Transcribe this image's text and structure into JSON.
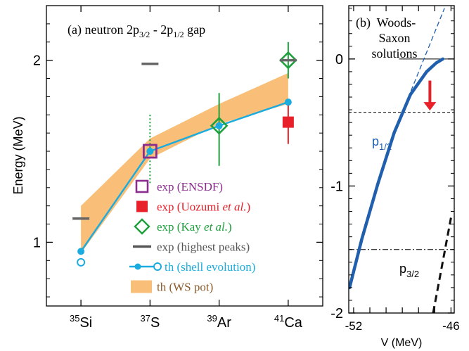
{
  "chart_data": [
    {
      "type": "scatter",
      "panel_label": "(a)",
      "title": "neutron 2p3/2 - 2p1/2 gap",
      "title_parts": {
        "prefix": "(a) neutron 2p",
        "sub1": "3/2",
        "mid": " - 2p",
        "sub2": "1/2",
        "suffix": " gap"
      },
      "ylabel": "Energy (MeV)",
      "xlabel": "",
      "ylim": [
        0.65,
        2.3
      ],
      "yticks": [
        1,
        2
      ],
      "categories": [
        "35Si",
        "37S",
        "39Ar",
        "41Ca"
      ],
      "category_labels": [
        {
          "mass": "35",
          "sym": "Si"
        },
        {
          "mass": "37",
          "sym": "S"
        },
        {
          "mass": "39",
          "sym": "Ar"
        },
        {
          "mass": "41",
          "sym": "Ca"
        }
      ],
      "series": [
        {
          "name": "exp (ENSDF)",
          "color": "#8b2c8f",
          "marker": "open-square",
          "points": [
            {
              "x": "37S",
              "y": 1.5
            }
          ]
        },
        {
          "name": "exp (Uozumi et al.)",
          "color": "#e8202a",
          "marker": "filled-square",
          "points": [
            {
              "x": "41Ca",
              "y": 1.66,
              "err": [
                0.12,
                0.12
              ]
            }
          ]
        },
        {
          "name": "exp (Kay et al.)",
          "color": "#1ea03c",
          "marker": "open-diamond",
          "points": [
            {
              "x": "39Ar",
              "y": 1.64,
              "err": [
                0.22,
                0.18
              ]
            },
            {
              "x": "41Ca",
              "y": 2.0,
              "err": [
                0.1,
                0.1
              ]
            }
          ]
        },
        {
          "name": "exp (highest peaks)",
          "color": "#666666",
          "marker": "dash",
          "points": [
            {
              "x": "35Si",
              "y": 1.13
            },
            {
              "x": "37S",
              "y": 1.98
            },
            {
              "x": "41Ca",
              "y": 2.0
            }
          ]
        },
        {
          "name": "th (shell evolution)",
          "color": "#1aabdf",
          "marker": "filled-circle-line",
          "points": [
            {
              "x": "35Si",
              "y": 0.95
            },
            {
              "x": "37S",
              "y": 1.5
            },
            {
              "x": "39Ar",
              "y": 1.64
            },
            {
              "x": "41Ca",
              "y": 1.77
            }
          ],
          "open_points": [
            {
              "x": "35Si",
              "y": 0.89
            }
          ]
        },
        {
          "name": "th (WS pot)",
          "color": "#f9bf78",
          "marker": "band",
          "band": [
            {
              "x": "35Si",
              "lo": 0.94,
              "hi": 1.2
            },
            {
              "x": "37S",
              "lo": 1.46,
              "hi": 1.57
            },
            {
              "x": "39Ar",
              "lo": 1.65,
              "hi": 1.76
            },
            {
              "x": "41Ca",
              "lo": 1.76,
              "hi": 1.93
            }
          ]
        }
      ],
      "annotations": [
        {
          "type": "dotted-errorbar",
          "x": "37S",
          "y_range": [
            1.32,
            1.7
          ],
          "color": "#1ea03c"
        }
      ],
      "legend": [
        {
          "text": "exp (ENSDF)",
          "prefix": "exp (ENSDF)",
          "italic": "",
          "suffix": "",
          "color": "#8b2c8f",
          "marker": "open-square"
        },
        {
          "text": "exp (Uozumi et al.)",
          "prefix": "exp (Uozumi ",
          "italic": "et al.",
          "suffix": ")",
          "color": "#e8202a",
          "marker": "filled-square"
        },
        {
          "text": "exp (Kay et al.)",
          "prefix": "exp (Kay ",
          "italic": "et al.",
          "suffix": ")",
          "color": "#1ea03c",
          "marker": "open-diamond"
        },
        {
          "text": "exp (highest peaks)",
          "prefix": "exp (highest peaks)",
          "italic": "",
          "suffix": "",
          "color": "#555555",
          "marker": "dash"
        },
        {
          "text": "th  (shell evolution)",
          "prefix": "th  (shell evolution)",
          "italic": "",
          "suffix": "",
          "color": "#1aabdf",
          "marker": "filled-circle-line"
        },
        {
          "text": "th  (WS pot)",
          "prefix": "th  (WS pot)",
          "italic": "",
          "suffix": "",
          "color": "#8a5a2a",
          "marker": "band"
        }
      ],
      "legend_position": "bottom-right"
    },
    {
      "type": "line",
      "panel_label": "(b)",
      "title": "Woods-Saxon solutions",
      "title_lines": [
        "(b)  Woods-",
        "Saxon",
        "solutions"
      ],
      "xlabel": "V (MeV)",
      "xlim": [
        -52.3,
        -45.8
      ],
      "ylim": [
        -2.0,
        0.42
      ],
      "xticks": [
        -52,
        -46
      ],
      "yticks": [
        0,
        -1,
        -2
      ],
      "series": [
        {
          "name": "p1/2",
          "label_main": "p",
          "label_sub": "1/2",
          "color": "#1f5fae",
          "style": "thick",
          "points": [
            [
              -52.25,
              -1.8
            ],
            [
              -51.5,
              -1.42
            ],
            [
              -50.5,
              -0.98
            ],
            [
              -49.5,
              -0.58
            ],
            [
              -48.5,
              -0.28
            ],
            [
              -47.5,
              -0.1
            ],
            [
              -46.9,
              -0.03
            ],
            [
              -46.5,
              0.0
            ]
          ]
        },
        {
          "name": "p1/2 asymptote",
          "color": "#1f5fae",
          "style": "dashed",
          "points": [
            [
              -49.0,
              -0.42
            ],
            [
              -46.4,
              0.4
            ]
          ]
        },
        {
          "name": "p3/2",
          "label_main": "p",
          "label_sub": "3/2",
          "color": "#111111",
          "style": "thick-dashed",
          "points": [
            [
              -47.1,
              -2.0
            ],
            [
              -46.0,
              -1.25
            ]
          ]
        }
      ],
      "reference_lines": [
        {
          "y": 0.0,
          "style": "solid",
          "color": "#000000",
          "x_from": -49.2
        },
        {
          "y": -0.42,
          "style": "dashed",
          "color": "#000000"
        },
        {
          "y": -1.5,
          "style": "dashdot",
          "color": "#000000"
        }
      ],
      "annotations": [
        {
          "type": "arrow",
          "color": "#e8202a",
          "x": -47.3,
          "y_from": -0.17,
          "y_to": -0.4
        }
      ]
    }
  ]
}
